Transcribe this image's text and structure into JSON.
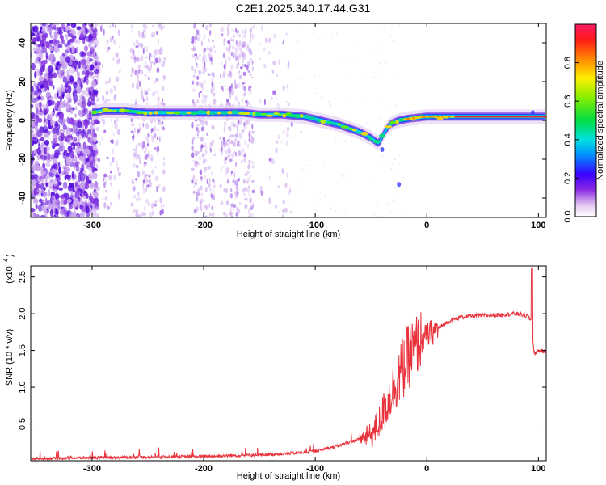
{
  "title": "C2E1.2025.340.17.44.G31",
  "chart_data": [
    {
      "type": "heatmap",
      "xlabel": "Height of straight line (km)",
      "ylabel": "Frequency (Hz)",
      "xlim": [
        -355,
        107
      ],
      "ylim": [
        -50,
        50
      ],
      "xticks": [
        -300,
        -200,
        -100,
        0,
        100
      ],
      "yticks": [
        -40,
        -20,
        0,
        20,
        40
      ],
      "trace": {
        "x": [
          -300,
          -290,
          -270,
          -250,
          -230,
          -210,
          -195,
          -180,
          -165,
          -150,
          -130,
          -110,
          -95,
          -80,
          -70,
          -60,
          -50,
          -43,
          -38,
          -33,
          -25,
          -15,
          0,
          20,
          50,
          80,
          100,
          107
        ],
        "y": [
          4,
          5,
          5,
          4,
          4,
          4,
          4,
          4,
          4,
          3,
          3,
          2,
          0,
          -2,
          -4,
          -6,
          -9,
          -12,
          -6,
          -2,
          0,
          1,
          2,
          2,
          2,
          2,
          2,
          2
        ]
      },
      "colorbar": {
        "label": "Normalized spectral amplitude",
        "range": [
          0,
          1
        ],
        "ticks": [
          0.0,
          0.2,
          0.4,
          0.6,
          0.8
        ],
        "tick_labels": [
          "0.0",
          "0.2",
          "0.4",
          "0.6",
          "0.8"
        ]
      }
    },
    {
      "type": "line",
      "xlabel": "Height of straight line (km)",
      "ylabel": "SNR (10 * v/v)",
      "multiplier_label": "(x10",
      "multiplier_exp": "4",
      "xlim": [
        -355,
        107
      ],
      "ylim": [
        0,
        2.65
      ],
      "xticks": [
        -300,
        -200,
        -100,
        0,
        100
      ],
      "yticks": [
        0.5,
        1.0,
        1.5,
        2.0,
        2.5
      ],
      "ytick_labels": [
        "0.5",
        "1.0",
        "1.5",
        "2.0",
        "2.5"
      ],
      "color": "#e8323c",
      "envelope": {
        "x": [
          -355,
          -300,
          -200,
          -150,
          -120,
          -100,
          -80,
          -60,
          -50,
          -45,
          -40,
          -35,
          -30,
          -25,
          -20,
          -15,
          -10,
          -5,
          0,
          10,
          20,
          30,
          40,
          60,
          80,
          90,
          94,
          96,
          100,
          107
        ],
        "y": [
          0.03,
          0.04,
          0.06,
          0.08,
          0.1,
          0.13,
          0.2,
          0.3,
          0.35,
          0.45,
          0.62,
          0.8,
          1.0,
          1.15,
          1.3,
          1.45,
          1.55,
          1.62,
          1.7,
          1.8,
          1.9,
          1.95,
          1.97,
          1.98,
          2.0,
          1.97,
          1.9,
          1.45,
          1.5,
          1.48
        ]
      }
    }
  ]
}
